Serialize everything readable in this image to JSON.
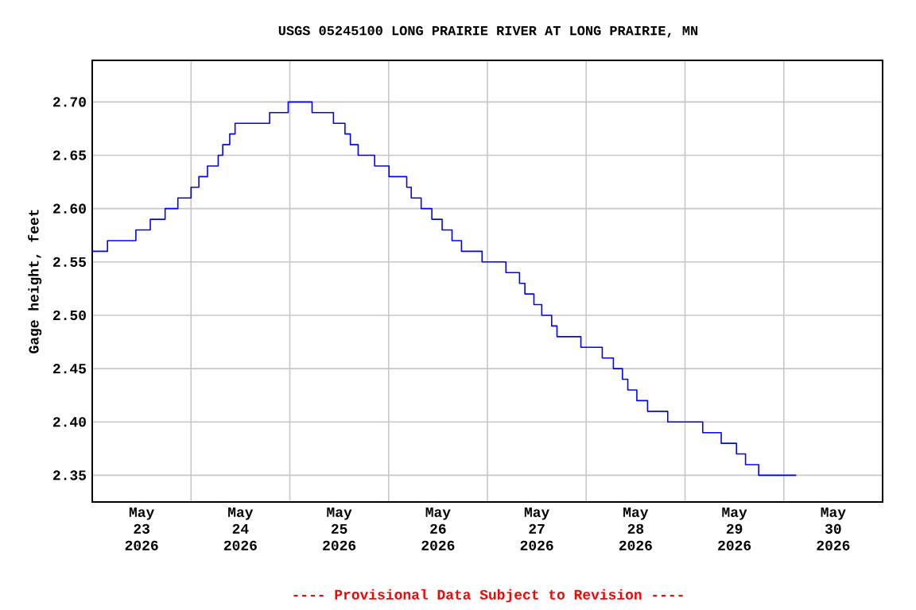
{
  "chart_data": {
    "type": "step",
    "title": "USGS 05245100 LONG PRAIRIE RIVER AT LONG PRAIRIE, MN",
    "ylabel": "Gage height, feet",
    "annotations": [
      "---- Provisional Data Subject to Revision ----"
    ],
    "x": [
      "2026-05-23T00:00",
      "2026-05-23T03:42",
      "2026-05-23T10:36",
      "2026-05-23T14:06",
      "2026-05-23T17:42",
      "2026-05-23T20:48",
      "2026-05-24T00:00",
      "2026-05-24T01:54",
      "2026-05-24T04:00",
      "2026-05-24T06:36",
      "2026-05-24T07:42",
      "2026-05-24T09:24",
      "2026-05-24T10:42",
      "2026-05-24T19:06",
      "2026-05-24T23:36",
      "2026-05-25T05:24",
      "2026-05-25T10:36",
      "2026-05-25T13:24",
      "2026-05-25T14:42",
      "2026-05-25T16:36",
      "2026-05-25T20:36",
      "2026-05-26T00:06",
      "2026-05-26T04:24",
      "2026-05-26T05:30",
      "2026-05-26T07:54",
      "2026-05-26T10:30",
      "2026-05-26T13:00",
      "2026-05-26T15:24",
      "2026-05-26T17:42",
      "2026-05-26T22:42",
      "2026-05-27T04:30",
      "2026-05-27T07:48",
      "2026-05-27T09:06",
      "2026-05-27T11:18",
      "2026-05-27T13:12",
      "2026-05-27T15:36",
      "2026-05-27T16:54",
      "2026-05-27T22:42",
      "2026-05-28T03:54",
      "2026-05-28T06:36",
      "2026-05-28T08:48",
      "2026-05-28T10:06",
      "2026-05-28T12:18",
      "2026-05-28T14:54",
      "2026-05-28T19:48",
      "2026-05-29T04:18",
      "2026-05-29T08:48",
      "2026-05-29T12:30",
      "2026-05-29T14:42",
      "2026-05-29T17:54",
      "2026-05-30T03:00"
    ],
    "series": [
      {
        "color": "#0000ff",
        "values": [
          2.56,
          2.57,
          2.58,
          2.59,
          2.6,
          2.61,
          2.62,
          2.63,
          2.64,
          2.65,
          2.66,
          2.67,
          2.68,
          2.69,
          2.7,
          2.69,
          2.68,
          2.67,
          2.66,
          2.65,
          2.64,
          2.63,
          2.62,
          2.61,
          2.6,
          2.59,
          2.58,
          2.57,
          2.56,
          2.55,
          2.54,
          2.53,
          2.52,
          2.51,
          2.5,
          2.49,
          2.48,
          2.47,
          2.46,
          2.45,
          2.44,
          2.43,
          2.42,
          2.41,
          2.4,
          2.39,
          2.38,
          2.37,
          2.36,
          2.35,
          2.35
        ]
      }
    ],
    "xlim": [
      "2026-05-23T00:00",
      "2026-05-31T00:00"
    ],
    "xticks": [
      {
        "value": "2026-05-23T12:00",
        "label": "May 23 2026"
      },
      {
        "value": "2026-05-24T12:00",
        "label": "May 24 2026"
      },
      {
        "value": "2026-05-25T12:00",
        "label": "May 25 2026"
      },
      {
        "value": "2026-05-26T12:00",
        "label": "May 26 2026"
      },
      {
        "value": "2026-05-27T12:00",
        "label": "May 27 2026"
      },
      {
        "value": "2026-05-28T12:00",
        "label": "May 28 2026"
      },
      {
        "value": "2026-05-29T12:00",
        "label": "May 29 2026"
      },
      {
        "value": "2026-05-30T12:00",
        "label": "May 30 2026"
      }
    ],
    "ylim": [
      2.325,
      2.739
    ],
    "yticks": [
      2.35,
      {
        "value": 2.4,
        "label": "2.40"
      },
      2.45,
      {
        "value": 2.5,
        "label": "2.50"
      },
      2.55,
      {
        "value": 2.6,
        "label": "2.60"
      },
      2.65,
      {
        "value": 2.7,
        "label": "2.70"
      }
    ],
    "grid": true,
    "marker": "none",
    "line_style": "solid"
  }
}
